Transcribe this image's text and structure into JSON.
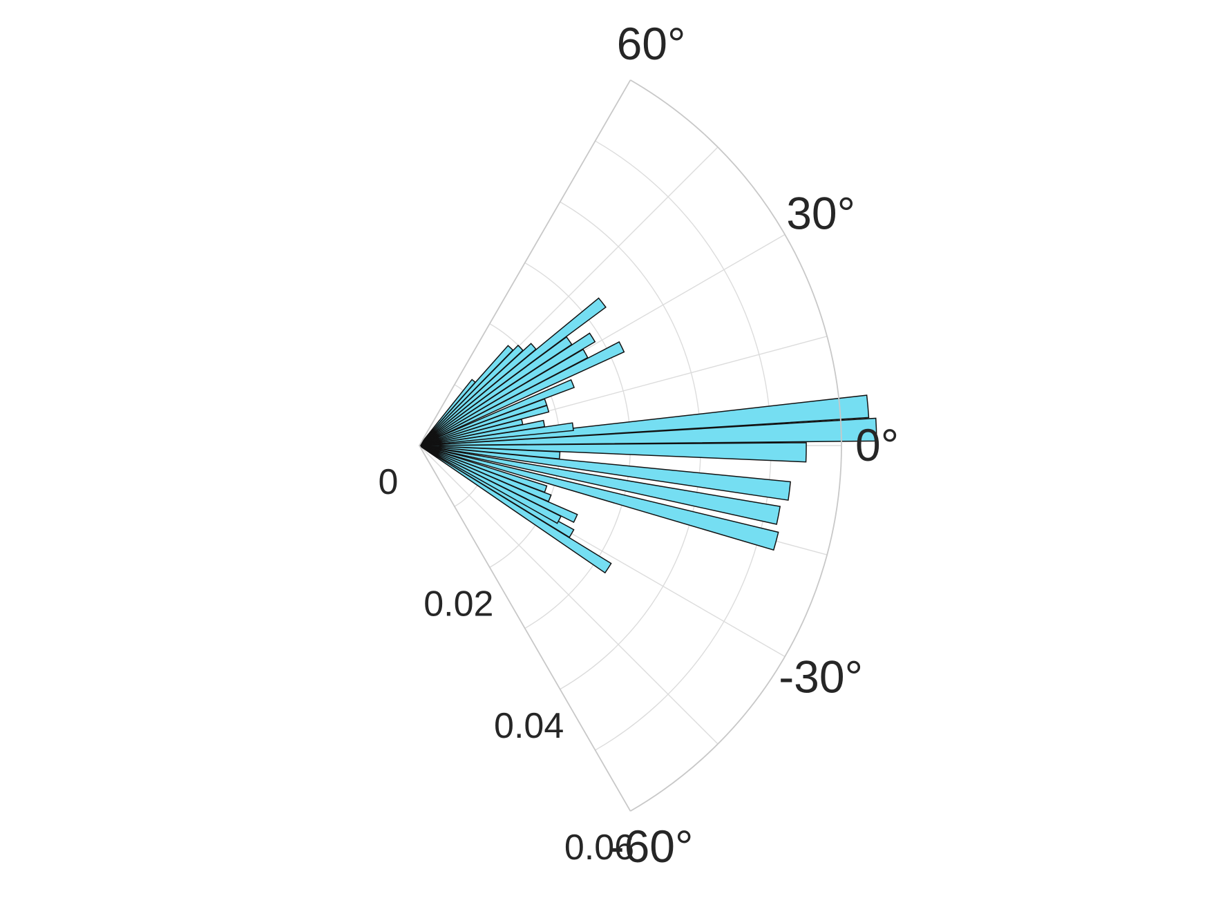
{
  "chart_data": {
    "type": "polar-bar",
    "theta_range_deg": [
      -60,
      60
    ],
    "r_range": [
      0,
      0.06
    ],
    "r_ticks": [
      {
        "value": 0,
        "label": "0"
      },
      {
        "value": 0.02,
        "label": "0.02"
      },
      {
        "value": 0.04,
        "label": "0.04"
      },
      {
        "value": 0.06,
        "label": "0.06"
      }
    ],
    "theta_ticks": [
      {
        "value": 60,
        "label": "60°"
      },
      {
        "value": 30,
        "label": "30°"
      },
      {
        "value": 0,
        "label": "0°"
      },
      {
        "value": -30,
        "label": "-30°"
      },
      {
        "value": -60,
        "label": "-60°"
      }
    ],
    "grid": true,
    "bar_color": "#75def2",
    "bar_edge_color": "#111111",
    "series": [
      {
        "bins": [
          {
            "theta": -33,
            "r": 0.032
          },
          {
            "theta": -30,
            "r": 0.025
          },
          {
            "theta": -28,
            "r": 0.0225
          },
          {
            "theta": -25,
            "r": 0.0245
          },
          {
            "theta": -22,
            "r": 0.02
          },
          {
            "theta": -19,
            "r": 0.019
          },
          {
            "theta": -15,
            "r": 0.0525
          },
          {
            "theta": -11,
            "r": 0.052
          },
          {
            "theta": -7,
            "r": 0.053
          },
          {
            "theta": -4,
            "r": 0.02
          },
          {
            "theta": -1,
            "r": 0.055
          },
          {
            "theta": 2,
            "r": 0.065
          },
          {
            "theta": 5,
            "r": 0.064
          },
          {
            "theta": 7,
            "r": 0.022
          },
          {
            "theta": 10,
            "r": 0.018
          },
          {
            "theta": 13,
            "r": 0.015
          },
          {
            "theta": 16,
            "r": 0.019
          },
          {
            "theta": 19,
            "r": 0.019
          },
          {
            "theta": 22,
            "r": 0.0235
          },
          {
            "theta": 26,
            "r": 0.032
          },
          {
            "theta": 29,
            "r": 0.027
          },
          {
            "theta": 32,
            "r": 0.029
          },
          {
            "theta": 35,
            "r": 0.026
          },
          {
            "theta": 38,
            "r": 0.033
          },
          {
            "theta": 41,
            "r": 0.0215
          },
          {
            "theta": 44,
            "r": 0.02
          },
          {
            "theta": 47,
            "r": 0.019
          },
          {
            "theta": 50,
            "r": 0.012
          }
        ]
      }
    ]
  }
}
